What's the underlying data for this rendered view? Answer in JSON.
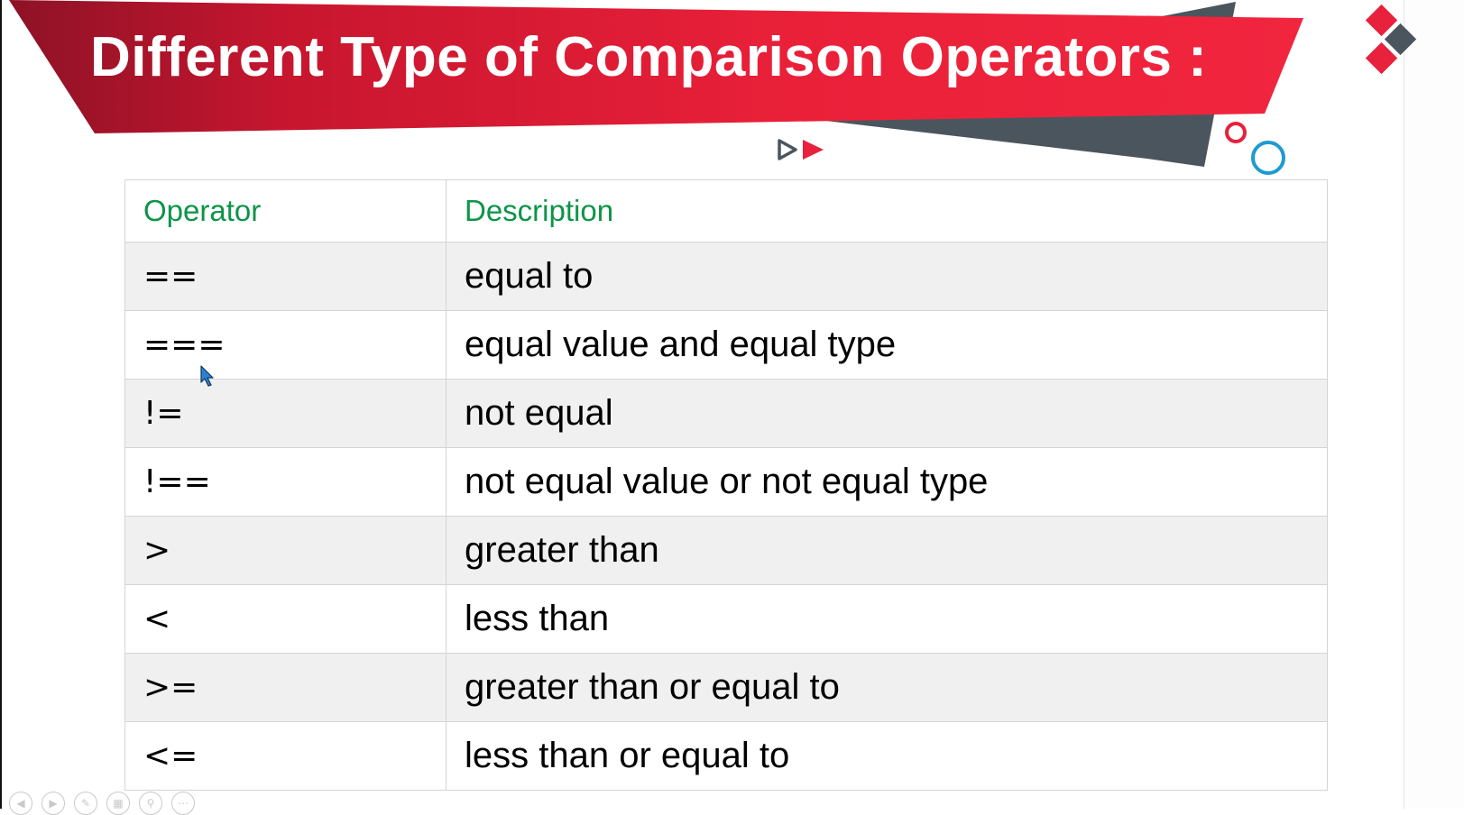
{
  "slide": {
    "title": "Different Type of Comparison Operators :",
    "accent_color": "#e8213c",
    "dark_color": "#4b555d",
    "circle_blue": "#1e9bd0"
  },
  "table": {
    "headers": {
      "operator": "Operator",
      "description": "Description"
    },
    "header_color": "#0d9447",
    "rows": [
      {
        "operator": "==",
        "description": "equal to"
      },
      {
        "operator": "===",
        "description": "equal value and equal type"
      },
      {
        "operator": "!=",
        "description": "not equal"
      },
      {
        "operator": "!==",
        "description": "not equal value or not equal type"
      },
      {
        "operator": ">",
        "description": "greater than"
      },
      {
        "operator": "<",
        "description": "less than"
      },
      {
        "operator": ">=",
        "description": "greater than or equal to"
      },
      {
        "operator": "<=",
        "description": "less than or equal to"
      }
    ]
  },
  "toolbar": {
    "buttons": [
      "previous-icon",
      "next-icon",
      "pen-icon",
      "slides-icon",
      "zoom-icon",
      "more-icon"
    ]
  }
}
